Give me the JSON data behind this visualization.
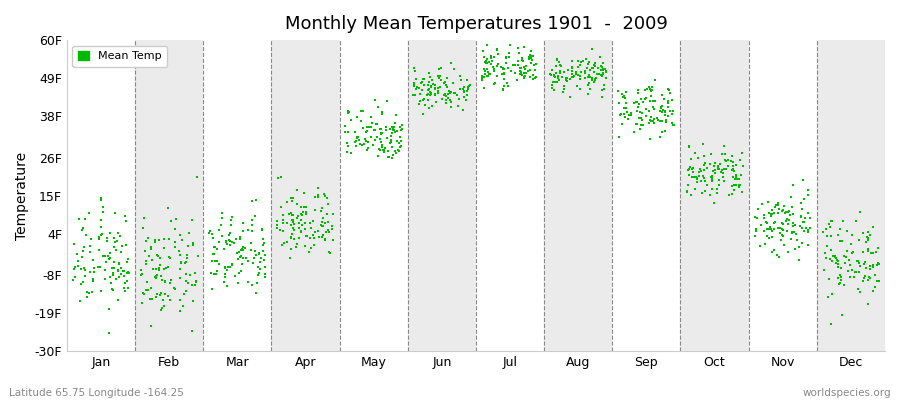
{
  "title": "Monthly Mean Temperatures 1901  -  2009",
  "ylabel": "Temperature",
  "yticks": [
    -30,
    -19,
    -8,
    4,
    15,
    26,
    38,
    49,
    60
  ],
  "ytick_labels": [
    "-30F",
    "-19F",
    "-8F",
    "4F",
    "15F",
    "26F",
    "38F",
    "49F",
    "60F"
  ],
  "ylim": [
    -30,
    60
  ],
  "months": [
    "Jan",
    "Feb",
    "Mar",
    "Apr",
    "May",
    "Jun",
    "Jul",
    "Aug",
    "Sep",
    "Oct",
    "Nov",
    "Dec"
  ],
  "dot_color": "#00bb00",
  "bg_color_white": "#ffffff",
  "bg_color_gray": "#ebebeb",
  "subtitle_left": "Latitude 65.75 Longitude -164.25",
  "subtitle_right": "worldspecies.org",
  "legend_label": "Mean Temp",
  "monthly_means": [
    -4,
    -7,
    -2,
    7,
    33,
    46,
    52,
    50,
    40,
    21,
    7,
    -3
  ],
  "monthly_stds": [
    7,
    7,
    6,
    5,
    4,
    3,
    2.5,
    2.5,
    3.5,
    4,
    5,
    6
  ],
  "n_years": 109
}
